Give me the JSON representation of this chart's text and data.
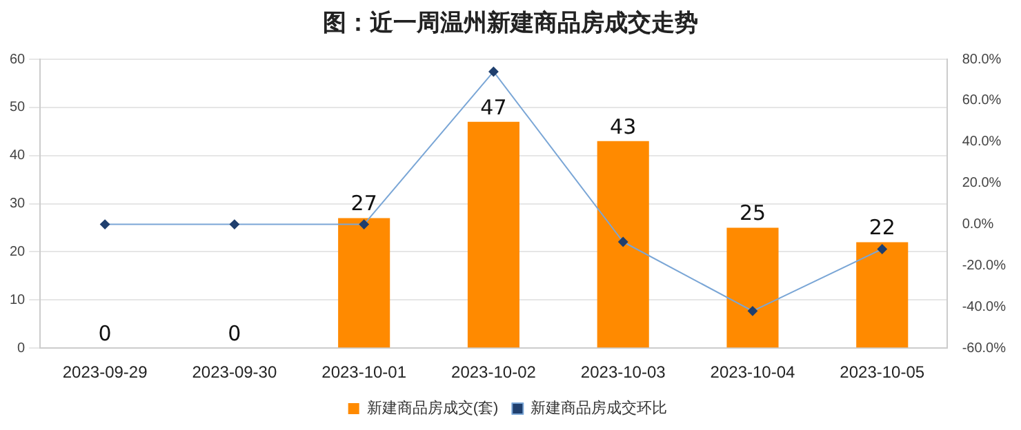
{
  "chart_data": {
    "type": "bar",
    "title": "图：近一周温州新建商品房成交走势",
    "categories": [
      "2023-09-29",
      "2023-09-30",
      "2023-10-01",
      "2023-10-02",
      "2023-10-03",
      "2023-10-04",
      "2023-10-05"
    ],
    "series": [
      {
        "name": "新建商品房成交(套)",
        "color": "#ff8a00",
        "values": [
          0,
          0,
          27,
          47,
          43,
          25,
          22
        ],
        "value_labels": [
          "0",
          "0",
          "27",
          "47",
          "43",
          "25",
          "22"
        ]
      },
      {
        "name": "新建商品房成交环比",
        "type": "line",
        "axis": "y2",
        "color": "#7aa6d6",
        "values": [
          0,
          0,
          0,
          74,
          -8.5,
          -42,
          -12
        ]
      }
    ],
    "ylim": [
      0,
      60
    ],
    "yticks": [
      0,
      10,
      20,
      30,
      40,
      50,
      60
    ],
    "y2lim": [
      -60,
      80
    ],
    "y2ticks": [
      {
        "value": -60,
        "label": "-60.0%"
      },
      {
        "value": -40,
        "label": "-40.0%"
      },
      {
        "value": -20,
        "label": "-20.0%"
      },
      {
        "value": 0,
        "label": "0.0%"
      },
      {
        "value": 20,
        "label": "20.0%"
      },
      {
        "value": 40,
        "label": "40.0%"
      },
      {
        "value": 60,
        "label": "60.0%"
      },
      {
        "value": 80,
        "label": "80.0%"
      }
    ],
    "grid": "y",
    "legend": "bottom",
    "marker": "diamond",
    "line_style": "solid"
  }
}
